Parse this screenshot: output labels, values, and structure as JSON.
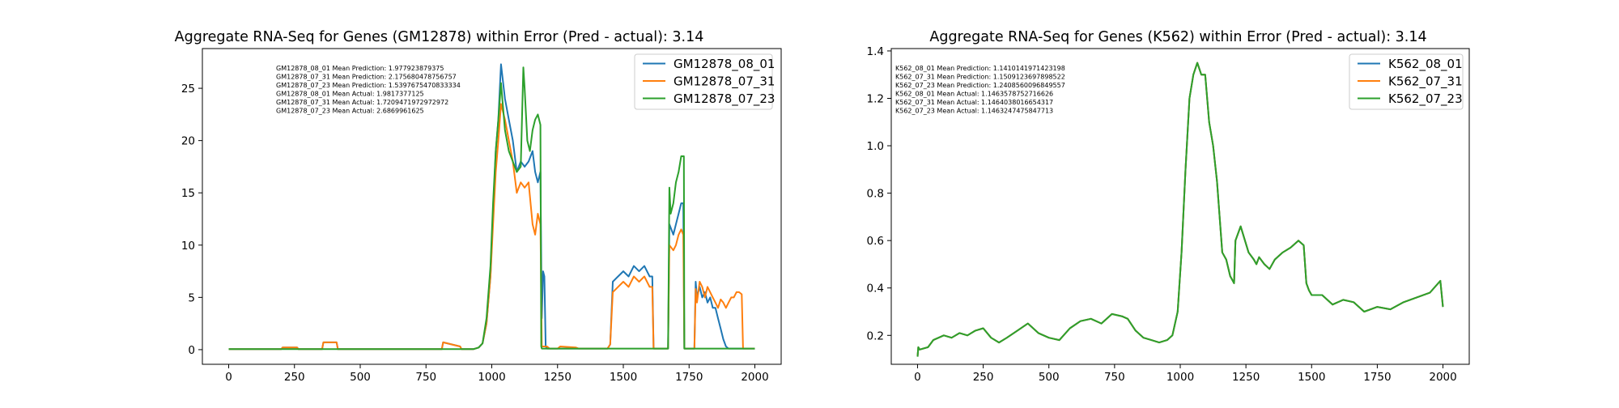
{
  "colors": {
    "blue": "#1f77b4",
    "orange": "#ff7f0e",
    "green": "#2ca02c"
  },
  "chart_data": [
    {
      "type": "line",
      "title": "Aggregate RNA-Seq for Genes (GM12878) within Error (Pred - actual): 3.14",
      "xlabel": "",
      "ylabel": "",
      "xlim": [
        -100,
        2100
      ],
      "ylim": [
        -1.4,
        28.8
      ],
      "xticks": [
        0,
        250,
        500,
        750,
        1000,
        1250,
        1500,
        1750,
        2000
      ],
      "yticks": [
        0,
        5,
        10,
        15,
        20,
        25
      ],
      "legend_position": "top-right",
      "annotations": [
        "GM12878_08_01 Mean Prediction: 1.977923879375",
        "GM12878_07_31 Mean Prediction: 2.175680478756757",
        "GM12878_07_23 Mean Prediction: 1.5397675470833334",
        "GM12878_08_01 Mean Actual: 1.9817377125",
        "GM12878_07_31 Mean Actual: 1.7209471972972972",
        "GM12878_07_23 Mean Actual: 2.6869961625"
      ],
      "series": [
        {
          "name": "GM12878_08_01",
          "color": "#1f77b4",
          "x": [
            0,
            200,
            205,
            260,
            265,
            355,
            360,
            410,
            415,
            810,
            815,
            880,
            885,
            930,
            950,
            965,
            980,
            995,
            1005,
            1015,
            1025,
            1035,
            1050,
            1065,
            1080,
            1095,
            1110,
            1125,
            1140,
            1155,
            1165,
            1175,
            1185,
            1190,
            1195,
            1200,
            1205,
            1210,
            1220,
            1440,
            1450,
            1460,
            1480,
            1500,
            1520,
            1540,
            1560,
            1580,
            1600,
            1610,
            1615,
            1670,
            1675,
            1690,
            1700,
            1710,
            1720,
            1728,
            1732,
            1770,
            1775,
            1780,
            1790,
            1800,
            1810,
            1820,
            1830,
            1840,
            1850,
            1860,
            1870,
            1880,
            1890,
            1900,
            1910,
            1920,
            1930,
            1940,
            1950,
            1960,
            2000
          ],
          "y": [
            0.05,
            0.05,
            0.2,
            0.2,
            0.05,
            0.05,
            0.7,
            0.7,
            0.05,
            0.05,
            0.7,
            0.3,
            0.05,
            0.05,
            0.2,
            0.6,
            2.5,
            7,
            13,
            19,
            22,
            27.3,
            24,
            22,
            20,
            17,
            18,
            17.5,
            18,
            19,
            17,
            16,
            17,
            3,
            7.5,
            7,
            0.3,
            0.1,
            0.1,
            0.1,
            0.5,
            6.5,
            7,
            7.5,
            7,
            8,
            7.5,
            8,
            7,
            7,
            0.1,
            0.1,
            12,
            11,
            12,
            13,
            14,
            14,
            0.1,
            0.1,
            6.5,
            5,
            6,
            5,
            5.5,
            4.5,
            5,
            4,
            4,
            3,
            2,
            1,
            0.3,
            0.1,
            0.1,
            0.1,
            0.1,
            0.1,
            0.1,
            0.1,
            0.1
          ]
        },
        {
          "name": "GM12878_07_31",
          "color": "#ff7f0e",
          "x": [
            0,
            200,
            205,
            260,
            265,
            355,
            360,
            410,
            415,
            810,
            815,
            880,
            885,
            930,
            950,
            965,
            980,
            995,
            1005,
            1015,
            1025,
            1035,
            1050,
            1065,
            1080,
            1095,
            1110,
            1125,
            1140,
            1155,
            1165,
            1175,
            1185,
            1190,
            1195,
            1200,
            1210,
            1220,
            1250,
            1260,
            1320,
            1330,
            1440,
            1450,
            1460,
            1480,
            1500,
            1520,
            1540,
            1560,
            1580,
            1600,
            1610,
            1615,
            1670,
            1675,
            1690,
            1700,
            1710,
            1720,
            1728,
            1732,
            1770,
            1775,
            1780,
            1790,
            1800,
            1810,
            1820,
            1830,
            1840,
            1850,
            1860,
            1870,
            1880,
            1890,
            1900,
            1910,
            1920,
            1930,
            1940,
            1950,
            1955,
            1960,
            2000
          ],
          "y": [
            0.05,
            0.05,
            0.2,
            0.2,
            0.05,
            0.05,
            0.7,
            0.7,
            0.05,
            0.05,
            0.7,
            0.3,
            0.05,
            0.05,
            0.2,
            0.6,
            2.5,
            7,
            12,
            17,
            20,
            23.5,
            22,
            20,
            18,
            15,
            16,
            15.5,
            16,
            12,
            11,
            13,
            12,
            0.3,
            0.3,
            0.3,
            0.3,
            0.1,
            0.1,
            0.3,
            0.2,
            0.1,
            0.1,
            0.5,
            5.5,
            6,
            6.5,
            6,
            7,
            6.5,
            7,
            6,
            6,
            0.1,
            0.1,
            10,
            9.5,
            10,
            11,
            11.5,
            11,
            0.1,
            0.1,
            5.8,
            4.5,
            6.5,
            6,
            5,
            6,
            5.5,
            5,
            4.5,
            4,
            4.8,
            4.5,
            4,
            4.5,
            5,
            5,
            5.5,
            5.5,
            5.3,
            0.1,
            0.1,
            0.1
          ]
        },
        {
          "name": "GM12878_07_23",
          "color": "#2ca02c",
          "x": [
            0,
            930,
            950,
            965,
            980,
            995,
            1005,
            1015,
            1025,
            1035,
            1050,
            1065,
            1080,
            1095,
            1110,
            1120,
            1125,
            1135,
            1145,
            1155,
            1165,
            1175,
            1185,
            1188,
            1190,
            1200,
            1670,
            1675,
            1680,
            1690,
            1700,
            1710,
            1720,
            1730,
            1732,
            2000
          ],
          "y": [
            0.05,
            0.05,
            0.2,
            0.6,
            3,
            8,
            14,
            19,
            22,
            25.5,
            21,
            19,
            18,
            17,
            17.5,
            27,
            25,
            20,
            19,
            21,
            22,
            22.5,
            21.5,
            0.3,
            0.1,
            0.1,
            0.1,
            15.5,
            13,
            14,
            16,
            17,
            18.5,
            18.5,
            0.1,
            0.1
          ]
        }
      ]
    },
    {
      "type": "line",
      "title": "Aggregate RNA-Seq for Genes (K562) within Error (Pred - actual): 3.14",
      "xlabel": "",
      "ylabel": "",
      "xlim": [
        -100,
        2100
      ],
      "ylim": [
        0.078,
        1.41
      ],
      "xticks": [
        0,
        250,
        500,
        750,
        1000,
        1250,
        1500,
        1750,
        2000
      ],
      "yticks": [
        0.2,
        0.4,
        0.6,
        0.8,
        1.0,
        1.2,
        1.4
      ],
      "legend_position": "top-right",
      "annotations": [
        "K562_08_01 Mean Prediction: 1.1410141971423198",
        "K562_07_31 Mean Prediction: 1.1509123697898522",
        "K562_07_23 Mean Prediction: 1.2408560096849557",
        "K562_08_01 Mean Actual: 1.1463578752716626",
        "K562_07_31 Mean Actual: 1.1464038016654317",
        "K562_07_23 Mean Actual: 1.1463247475847713"
      ],
      "series": [
        {
          "name": "K562_08_01",
          "color": "#1f77b4",
          "x": [
            0,
            3,
            8,
            40,
            60,
            80,
            100,
            130,
            160,
            190,
            220,
            250,
            280,
            310,
            340,
            380,
            420,
            460,
            500,
            540,
            580,
            620,
            660,
            700,
            740,
            780,
            800,
            830,
            860,
            890,
            920,
            950,
            970,
            990,
            1005,
            1020,
            1035,
            1050,
            1065,
            1080,
            1095,
            1110,
            1125,
            1140,
            1160,
            1175,
            1190,
            1200,
            1205,
            1210,
            1230,
            1260,
            1280,
            1290,
            1300,
            1320,
            1340,
            1360,
            1390,
            1420,
            1450,
            1470,
            1480,
            1490,
            1500,
            1540,
            1580,
            1620,
            1660,
            1700,
            1750,
            1800,
            1850,
            1900,
            1950,
            1990,
            2000
          ],
          "y": [
            0.11,
            0.15,
            0.14,
            0.15,
            0.18,
            0.19,
            0.2,
            0.19,
            0.21,
            0.2,
            0.22,
            0.23,
            0.19,
            0.17,
            0.19,
            0.22,
            0.25,
            0.21,
            0.19,
            0.18,
            0.23,
            0.26,
            0.27,
            0.25,
            0.29,
            0.28,
            0.27,
            0.22,
            0.19,
            0.18,
            0.17,
            0.18,
            0.2,
            0.3,
            0.55,
            0.9,
            1.2,
            1.3,
            1.35,
            1.3,
            1.3,
            1.1,
            1.0,
            0.85,
            0.55,
            0.52,
            0.45,
            0.43,
            0.42,
            0.6,
            0.66,
            0.55,
            0.52,
            0.5,
            0.53,
            0.5,
            0.48,
            0.52,
            0.55,
            0.57,
            0.6,
            0.58,
            0.42,
            0.39,
            0.37,
            0.37,
            0.33,
            0.35,
            0.34,
            0.3,
            0.32,
            0.31,
            0.34,
            0.36,
            0.38,
            0.43,
            0.32
          ]
        },
        {
          "name": "K562_07_31",
          "color": "#ff7f0e",
          "x": [
            0,
            3,
            8,
            40,
            60,
            80,
            100,
            130,
            160,
            190,
            220,
            250,
            280,
            310,
            340,
            380,
            420,
            460,
            500,
            540,
            580,
            620,
            660,
            700,
            740,
            780,
            800,
            830,
            860,
            890,
            920,
            950,
            970,
            990,
            1005,
            1020,
            1035,
            1050,
            1065,
            1080,
            1095,
            1110,
            1125,
            1140,
            1160,
            1175,
            1190,
            1200,
            1205,
            1210,
            1230,
            1260,
            1280,
            1290,
            1300,
            1320,
            1340,
            1360,
            1390,
            1420,
            1450,
            1470,
            1480,
            1490,
            1500,
            1540,
            1580,
            1620,
            1660,
            1700,
            1750,
            1800,
            1850,
            1900,
            1950,
            1990,
            2000
          ],
          "y": [
            0.11,
            0.15,
            0.14,
            0.15,
            0.18,
            0.19,
            0.2,
            0.19,
            0.21,
            0.2,
            0.22,
            0.23,
            0.19,
            0.17,
            0.19,
            0.22,
            0.25,
            0.21,
            0.19,
            0.18,
            0.23,
            0.26,
            0.27,
            0.25,
            0.29,
            0.28,
            0.27,
            0.22,
            0.19,
            0.18,
            0.17,
            0.18,
            0.2,
            0.3,
            0.55,
            0.9,
            1.2,
            1.3,
            1.35,
            1.3,
            1.3,
            1.1,
            1.0,
            0.85,
            0.55,
            0.52,
            0.45,
            0.43,
            0.42,
            0.6,
            0.66,
            0.55,
            0.52,
            0.5,
            0.53,
            0.5,
            0.48,
            0.52,
            0.55,
            0.57,
            0.6,
            0.58,
            0.42,
            0.39,
            0.37,
            0.37,
            0.33,
            0.35,
            0.34,
            0.3,
            0.32,
            0.31,
            0.34,
            0.36,
            0.38,
            0.43,
            0.32
          ]
        },
        {
          "name": "K562_07_23",
          "color": "#2ca02c",
          "x": [
            0,
            3,
            8,
            40,
            60,
            80,
            100,
            130,
            160,
            190,
            220,
            250,
            280,
            310,
            340,
            380,
            420,
            460,
            500,
            540,
            580,
            620,
            660,
            700,
            740,
            780,
            800,
            830,
            860,
            890,
            920,
            950,
            970,
            990,
            1005,
            1020,
            1035,
            1050,
            1065,
            1080,
            1095,
            1110,
            1125,
            1140,
            1160,
            1175,
            1190,
            1200,
            1205,
            1210,
            1230,
            1260,
            1280,
            1290,
            1300,
            1320,
            1340,
            1360,
            1390,
            1420,
            1450,
            1470,
            1480,
            1490,
            1500,
            1540,
            1580,
            1620,
            1660,
            1700,
            1750,
            1800,
            1850,
            1900,
            1950,
            1990,
            2000
          ],
          "y": [
            0.11,
            0.15,
            0.14,
            0.15,
            0.18,
            0.19,
            0.2,
            0.19,
            0.21,
            0.2,
            0.22,
            0.23,
            0.19,
            0.17,
            0.19,
            0.22,
            0.25,
            0.21,
            0.19,
            0.18,
            0.23,
            0.26,
            0.27,
            0.25,
            0.29,
            0.28,
            0.27,
            0.22,
            0.19,
            0.18,
            0.17,
            0.18,
            0.2,
            0.3,
            0.55,
            0.9,
            1.2,
            1.3,
            1.35,
            1.3,
            1.3,
            1.1,
            1.0,
            0.85,
            0.55,
            0.52,
            0.45,
            0.43,
            0.42,
            0.6,
            0.66,
            0.55,
            0.52,
            0.5,
            0.53,
            0.5,
            0.48,
            0.52,
            0.55,
            0.57,
            0.6,
            0.58,
            0.42,
            0.39,
            0.37,
            0.37,
            0.33,
            0.35,
            0.34,
            0.3,
            0.32,
            0.31,
            0.34,
            0.36,
            0.38,
            0.43,
            0.32
          ]
        }
      ]
    }
  ]
}
